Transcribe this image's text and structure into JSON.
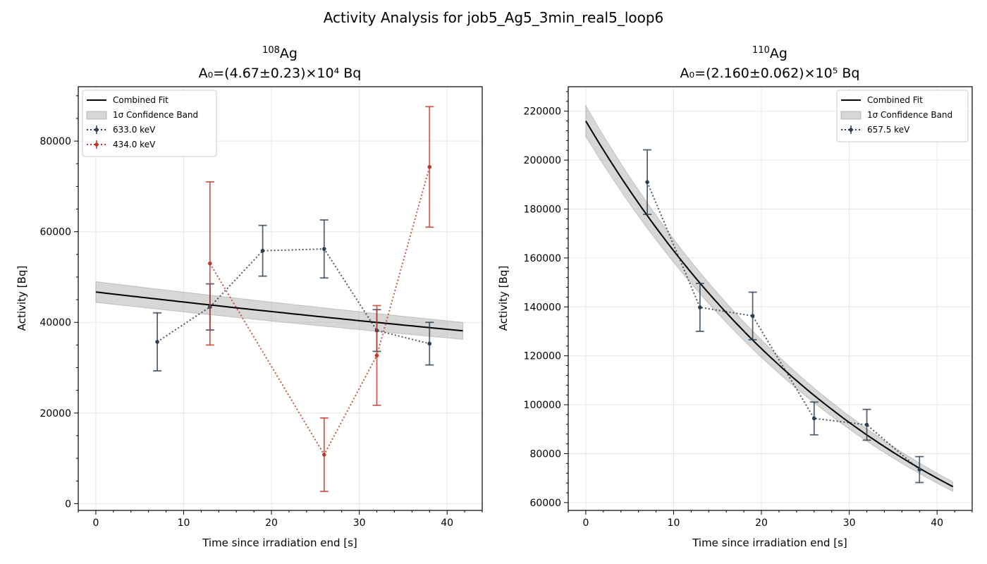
{
  "figure": {
    "suptitle": "Activity Analysis for job5_Ag5_3min_real5_loop6"
  },
  "chart_data": [
    {
      "type": "line",
      "isotope_mass": "108",
      "isotope_element": "Ag",
      "subtitle": "A₀=(4.67±0.23)×10⁴ Bq",
      "xlabel": "Time since irradiation end [s]",
      "ylabel": "Activity [Bq]",
      "xlim": [
        -2,
        44
      ],
      "ylim": [
        -1500,
        92000
      ],
      "xticks": [
        0,
        10,
        20,
        30,
        40
      ],
      "yticks": [
        0,
        20000,
        40000,
        60000,
        80000
      ],
      "grid": true,
      "legend_position": "upper left",
      "fit": {
        "name": "Combined Fit",
        "color": "#000000",
        "A0": 46700,
        "half_life_s": 142.9,
        "band_rel": 0.049,
        "x_range": [
          0,
          41.8
        ]
      },
      "band_name": "1σ Confidence Band",
      "series": [
        {
          "name": "633.0 keV",
          "color": "#2c3e50",
          "x": [
            7,
            13,
            19,
            26,
            32,
            38
          ],
          "y": [
            35700,
            43400,
            55800,
            56200,
            38200,
            35300
          ],
          "err": [
            6400,
            5100,
            5600,
            6400,
            4600,
            4700
          ]
        },
        {
          "name": "434.0 keV",
          "color": "#c0392b",
          "x": [
            13,
            26,
            32,
            38
          ],
          "y": [
            53000,
            10800,
            32700,
            74300
          ],
          "err": [
            18000,
            8100,
            11000,
            13300
          ]
        }
      ]
    },
    {
      "type": "line",
      "isotope_mass": "110",
      "isotope_element": "Ag",
      "subtitle": "A₀=(2.160±0.062)×10⁵ Bq",
      "xlabel": "Time since irradiation end [s]",
      "ylabel": "Activity [Bq]",
      "xlim": [
        -2,
        44
      ],
      "ylim": [
        56800,
        230000
      ],
      "xticks": [
        0,
        10,
        20,
        30,
        40
      ],
      "yticks": [
        60000,
        80000,
        100000,
        120000,
        140000,
        160000,
        180000,
        200000,
        220000
      ],
      "grid": true,
      "legend_position": "upper right",
      "fit": {
        "name": "Combined Fit",
        "color": "#000000",
        "A0": 216000,
        "half_life_s": 24.6,
        "band_rel": 0.029,
        "x_range": [
          0,
          41.8
        ]
      },
      "band_name": "1σ Confidence Band",
      "series": [
        {
          "name": "657.5 keV",
          "color": "#2c3e50",
          "x": [
            7,
            13,
            19,
            26,
            32,
            38
          ],
          "y": [
            191000,
            139800,
            136300,
            94400,
            91800,
            73500
          ],
          "err": [
            13200,
            9800,
            9700,
            6700,
            6300,
            5300
          ]
        }
      ]
    }
  ]
}
